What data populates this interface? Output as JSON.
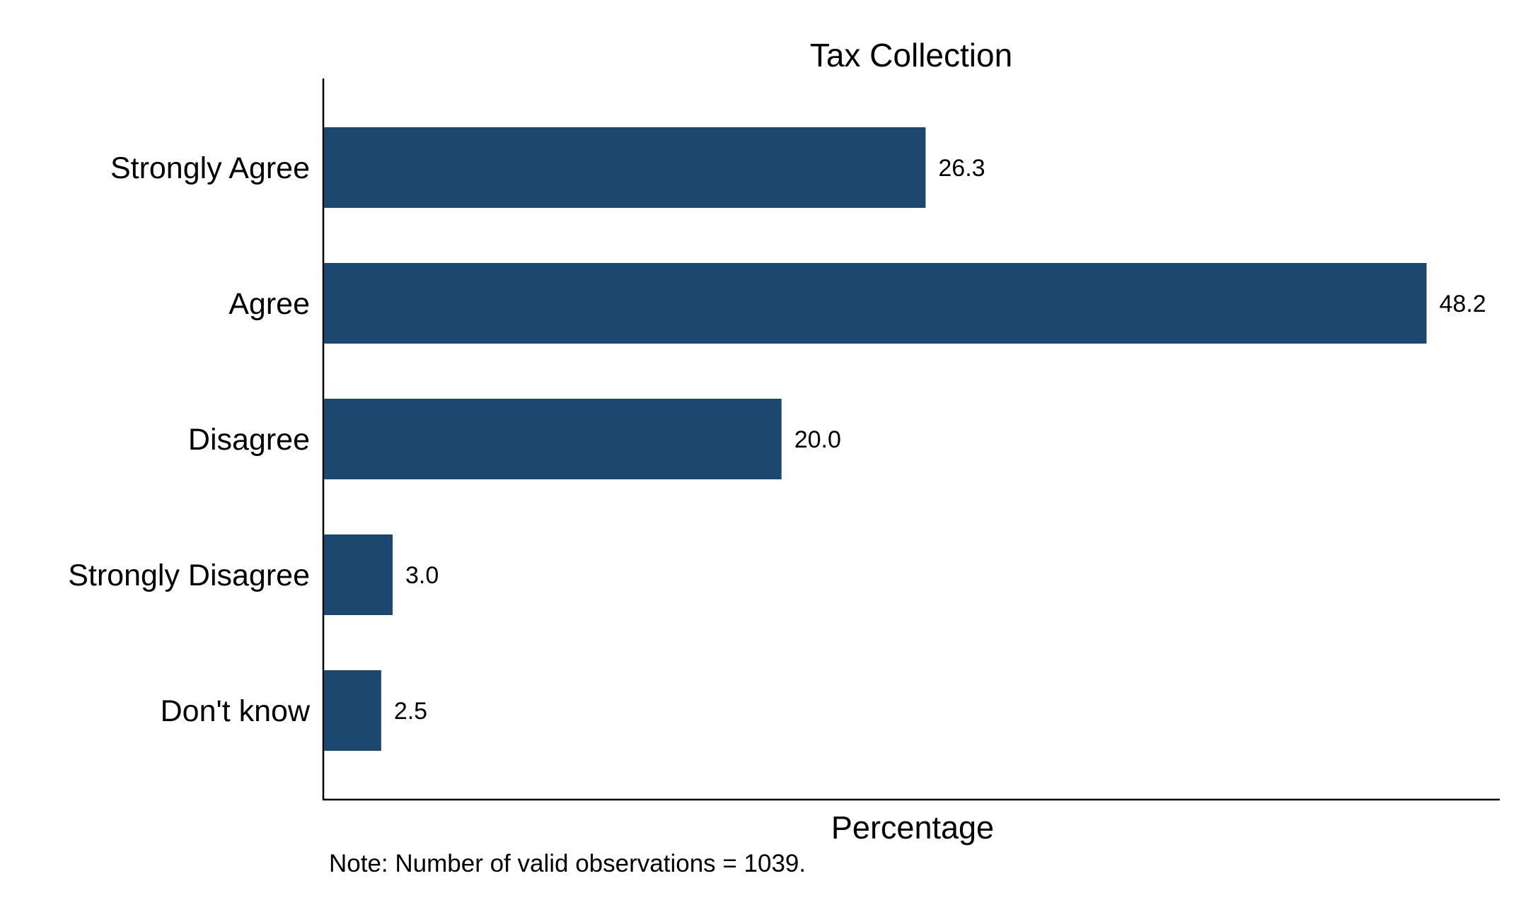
{
  "chart_data": {
    "type": "bar",
    "orientation": "horizontal",
    "title": "Tax Collection",
    "xlabel": "Percentage",
    "ylabel": "",
    "categories": [
      "Strongly Agree",
      "Agree",
      "Disagree",
      "Strongly Disagree",
      "Don't know"
    ],
    "values": [
      26.3,
      48.2,
      20.0,
      3.0,
      2.5
    ],
    "value_labels": [
      "26.3",
      "48.2",
      "20.0",
      "3.0",
      "2.5"
    ],
    "xlim": [
      0,
      51.4
    ],
    "grid": false,
    "legend": "none",
    "bar_color": "#1c4870"
  },
  "note": "Note: Number of valid observations = 1039."
}
